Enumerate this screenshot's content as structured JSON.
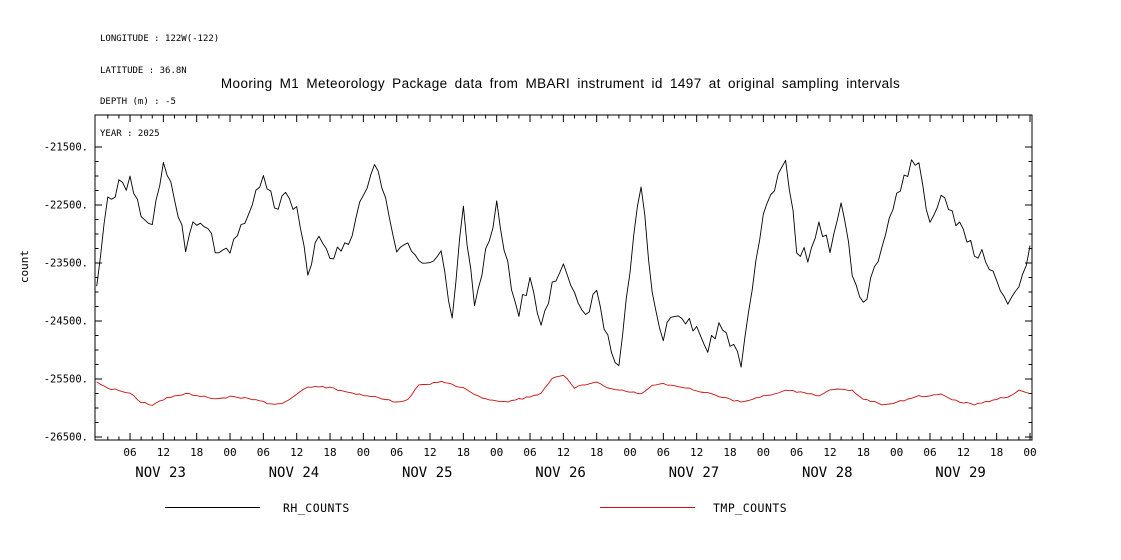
{
  "header": {
    "lines": [
      "LONGITUDE : 122W(-122)",
      "LATITUDE : 36.8N",
      "DEPTH (m) : -5",
      "YEAR : 2025"
    ]
  },
  "title": "Mooring M1 Meteorology Package data from MBARI instrument id 1497 at original sampling intervals",
  "y_axis": {
    "label": "count",
    "tick_labels": [
      "-21500.",
      "-22500.",
      "-23500.",
      "-24500.",
      "-25500.",
      "-26500."
    ],
    "tick_values": [
      -21500,
      -22500,
      -23500,
      -24500,
      -25500,
      -26500
    ]
  },
  "x_axis": {
    "hour_tick_labels": [
      "06",
      "12",
      "18",
      "00"
    ],
    "day_labels": [
      "NOV 23",
      "NOV 24",
      "NOV 25",
      "NOV 26",
      "NOV 27",
      "NOV 28",
      "NOV 29"
    ]
  },
  "legend": {
    "items": [
      {
        "label": "RH_COUNTS",
        "color": "#000000"
      },
      {
        "label": "TMP_COUNTS",
        "color": "#cc1111"
      }
    ]
  },
  "chart_data": {
    "type": "line",
    "title": "Mooring M1 Meteorology Package data from MBARI instrument id 1497 at original sampling intervals",
    "xlabel": "",
    "ylabel": "count",
    "ylim": [
      -26500,
      -21500
    ],
    "yticks": [
      -21500,
      -22500,
      -23500,
      -24500,
      -25500,
      -26500
    ],
    "grid": false,
    "legend_position": "bottom",
    "x_start_hour": 0,
    "x_step_hours": 2,
    "x_end_hour": 168,
    "x_tick_interval_hours": 6,
    "hour_tick_labels": [
      "06",
      "12",
      "18",
      "00"
    ],
    "day_labels": [
      "NOV 23",
      "NOV 24",
      "NOV 25",
      "NOV 26",
      "NOV 27",
      "NOV 28",
      "NOV 29"
    ],
    "series": [
      {
        "name": "RH_COUNTS",
        "color": "#000000",
        "values": [
          -23900,
          -22450,
          -22150,
          -22100,
          -22650,
          -22950,
          -21650,
          -22450,
          -23200,
          -22750,
          -23000,
          -23350,
          -23300,
          -22800,
          -22500,
          -21950,
          -22600,
          -22400,
          -22600,
          -23700,
          -23000,
          -23300,
          -23350,
          -22900,
          -22300,
          -21750,
          -22500,
          -23300,
          -23100,
          -23450,
          -23500,
          -23300,
          -24400,
          -22600,
          -24200,
          -23300,
          -22500,
          -23600,
          -24300,
          -23800,
          -24600,
          -23900,
          -23500,
          -23900,
          -24400,
          -24000,
          -24800,
          -25300,
          -23600,
          -22100,
          -24000,
          -24800,
          -24300,
          -24500,
          -24700,
          -25000,
          -24600,
          -24900,
          -25200,
          -24000,
          -22700,
          -22300,
          -21650,
          -23200,
          -23400,
          -22800,
          -23200,
          -22400,
          -23600,
          -24300,
          -23600,
          -23000,
          -22400,
          -21900,
          -21700,
          -22900,
          -22300,
          -22700,
          -23000,
          -23300,
          -23400,
          -23700,
          -24300,
          -24000,
          -23200
        ]
      },
      {
        "name": "TMP_COUNTS",
        "color": "#cc1111",
        "values": [
          -25550,
          -25650,
          -25700,
          -25750,
          -25900,
          -25950,
          -25850,
          -25800,
          -25750,
          -25780,
          -25820,
          -25850,
          -25800,
          -25820,
          -25850,
          -25900,
          -25950,
          -25900,
          -25750,
          -25650,
          -25620,
          -25650,
          -25700,
          -25750,
          -25780,
          -25800,
          -25850,
          -25900,
          -25850,
          -25600,
          -25580,
          -25550,
          -25600,
          -25650,
          -25780,
          -25850,
          -25880,
          -25900,
          -25850,
          -25800,
          -25750,
          -25500,
          -25430,
          -25650,
          -25600,
          -25550,
          -25650,
          -25700,
          -25720,
          -25750,
          -25600,
          -25580,
          -25620,
          -25650,
          -25700,
          -25750,
          -25800,
          -25850,
          -25900,
          -25850,
          -25780,
          -25750,
          -25700,
          -25720,
          -25750,
          -25800,
          -25700,
          -25680,
          -25700,
          -25850,
          -25900,
          -25950,
          -25900,
          -25850,
          -25800,
          -25780,
          -25750,
          -25850,
          -25900,
          -25950,
          -25900,
          -25850,
          -25800,
          -25700,
          -25750
        ]
      }
    ]
  }
}
